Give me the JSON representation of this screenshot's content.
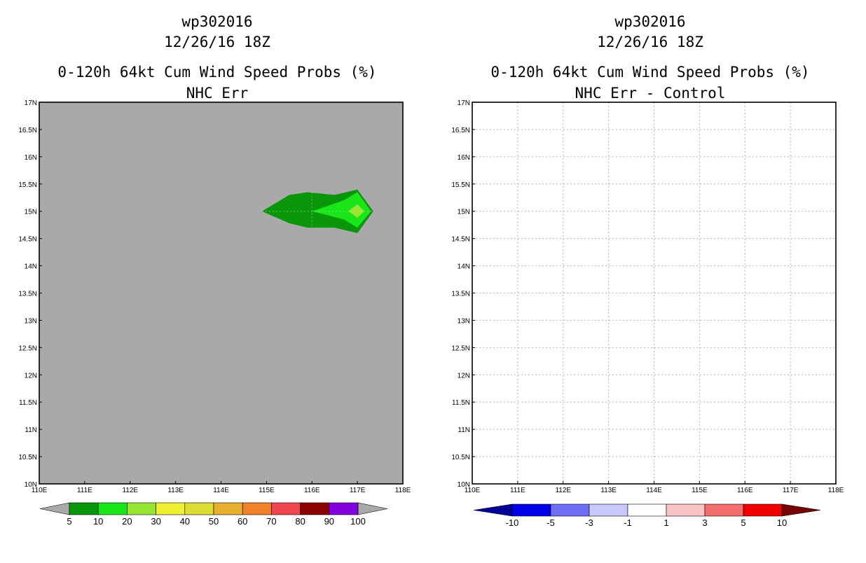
{
  "chart_data": [
    {
      "type": "heatmap",
      "panel": "left",
      "title_lines": [
        "wp302016",
        "12/26/16 18Z",
        "0-120h 64kt Cum Wind Speed Probs (%)",
        "NHC Err"
      ],
      "x_ticks": [
        "110E",
        "111E",
        "112E",
        "113E",
        "114E",
        "115E",
        "116E",
        "117E",
        "118E"
      ],
      "y_ticks": [
        "10N",
        "10.5N",
        "11N",
        "11.5N",
        "12N",
        "12.5N",
        "13N",
        "13.5N",
        "14N",
        "14.5N",
        "15N",
        "15.5N",
        "16N",
        "16.5N",
        "17N"
      ],
      "xlim": [
        110,
        118
      ],
      "ylim": [
        10,
        17
      ],
      "background_color": "#a9a9a9",
      "contours": [
        {
          "level": 5,
          "color": "#0a960a",
          "polygon_lonlat": [
            [
              114.9,
              15.0
            ],
            [
              115.5,
              15.3
            ],
            [
              115.9,
              15.35
            ],
            [
              116.5,
              15.3
            ],
            [
              117.0,
              15.4
            ],
            [
              117.35,
              15.0
            ],
            [
              117.0,
              14.6
            ],
            [
              116.5,
              14.7
            ],
            [
              115.9,
              14.7
            ],
            [
              115.5,
              14.78
            ]
          ]
        },
        {
          "level": 10,
          "color": "#19e619",
          "polygon_lonlat": [
            [
              116.0,
              15.0
            ],
            [
              116.7,
              15.2
            ],
            [
              117.0,
              15.35
            ],
            [
              117.3,
              15.0
            ],
            [
              117.0,
              14.7
            ],
            [
              116.7,
              14.85
            ]
          ]
        },
        {
          "level": 20,
          "color": "#96e632",
          "polygon_lonlat": [
            [
              116.8,
              15.0
            ],
            [
              117.0,
              15.13
            ],
            [
              117.15,
              15.0
            ],
            [
              117.0,
              14.88
            ]
          ]
        }
      ],
      "colorbar": {
        "labels": [
          "5",
          "10",
          "20",
          "30",
          "40",
          "50",
          "60",
          "70",
          "80",
          "90",
          "100"
        ],
        "colors": [
          "#0a960a",
          "#19e619",
          "#96e632",
          "#f0f032",
          "#dcdc32",
          "#e6af2d",
          "#f08228",
          "#f04650",
          "#8c0000",
          "#8200dc"
        ],
        "end_colors": [
          "#a9a9a9",
          "#a9a9a9"
        ]
      }
    },
    {
      "type": "heatmap",
      "panel": "right",
      "title_lines": [
        "wp302016",
        "12/26/16 18Z",
        "0-120h 64kt Cum Wind Speed Probs (%)",
        "NHC Err - Control"
      ],
      "x_ticks": [
        "110E",
        "111E",
        "112E",
        "113E",
        "114E",
        "115E",
        "116E",
        "117E",
        "118E"
      ],
      "y_ticks": [
        "10N",
        "10.5N",
        "11N",
        "11.5N",
        "12N",
        "12.5N",
        "13N",
        "13.5N",
        "14N",
        "14.5N",
        "15N",
        "15.5N",
        "16N",
        "16.5N",
        "17N"
      ],
      "xlim": [
        110,
        118
      ],
      "ylim": [
        10,
        17
      ],
      "background_color": "#ffffff",
      "grid": "dotted",
      "contours": [],
      "colorbar": {
        "labels": [
          "-10",
          "-5",
          "-3",
          "-1",
          "1",
          "3",
          "5",
          "10"
        ],
        "colors": [
          "#0000e6",
          "#6e6ef5",
          "#c8c8fa",
          "#ffffff",
          "#fac3c3",
          "#f56e6e",
          "#f00000"
        ],
        "end_colors": [
          "#000096",
          "#780000"
        ]
      }
    }
  ]
}
